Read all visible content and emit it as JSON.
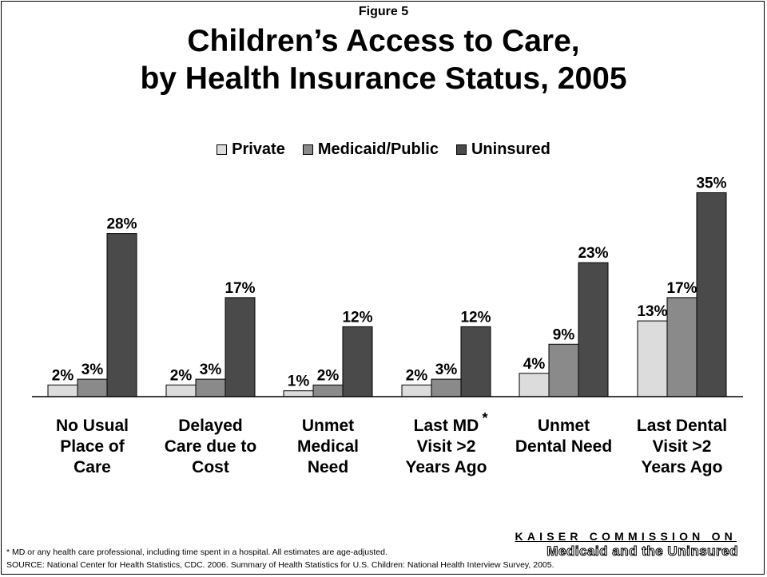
{
  "figure_label": "Figure 5",
  "title_line1": "Children’s Access to Care,",
  "title_line2": "by Health Insurance Status, 2005",
  "footnote": "* MD or any health care professional, including time spent in a hospital.  All estimates are age-adjusted.",
  "source": "SOURCE:  National Center for Health Statistics, CDC.  2006. Summary of Health Statistics for U.S. Children: National Health Interview Survey, 2005.",
  "branding": {
    "line1": "KAISER COMMISSION ON",
    "line2": "Medicaid and the Uninsured"
  },
  "colors": {
    "private": "#dcdcdc",
    "medicaid": "#8a8a8a",
    "uninsured": "#4a4a4a"
  },
  "chart_data": {
    "type": "bar",
    "categories": [
      [
        "No Usual",
        "Place of",
        "Care"
      ],
      [
        "Delayed",
        "Care due to",
        "Cost"
      ],
      [
        "Unmet",
        "Medical",
        "Need"
      ],
      [
        "Last MD",
        "Visit >2",
        "Years Ago"
      ],
      [
        "Unmet",
        "Dental Need"
      ],
      [
        "Last Dental",
        "Visit >2",
        "Years Ago"
      ]
    ],
    "category_markers": [
      "",
      "",
      "",
      "*",
      "",
      ""
    ],
    "series": [
      {
        "name": "Private",
        "values": [
          2,
          2,
          1,
          2,
          4,
          13
        ],
        "labels": [
          "2%",
          "2%",
          "1%",
          "2%",
          "4%",
          "13%"
        ]
      },
      {
        "name": "Medicaid/Public",
        "values": [
          3,
          3,
          2,
          3,
          9,
          17
        ],
        "labels": [
          "3%",
          "3%",
          "2%",
          "3%",
          "9%",
          "17%"
        ]
      },
      {
        "name": "Uninsured",
        "values": [
          28,
          17,
          12,
          12,
          23,
          35
        ],
        "labels": [
          "28%",
          "17%",
          "12%",
          "12%",
          "23%",
          "35%"
        ]
      }
    ],
    "ylim": [
      0,
      35
    ],
    "legend_position": "top-center",
    "grid": false
  }
}
